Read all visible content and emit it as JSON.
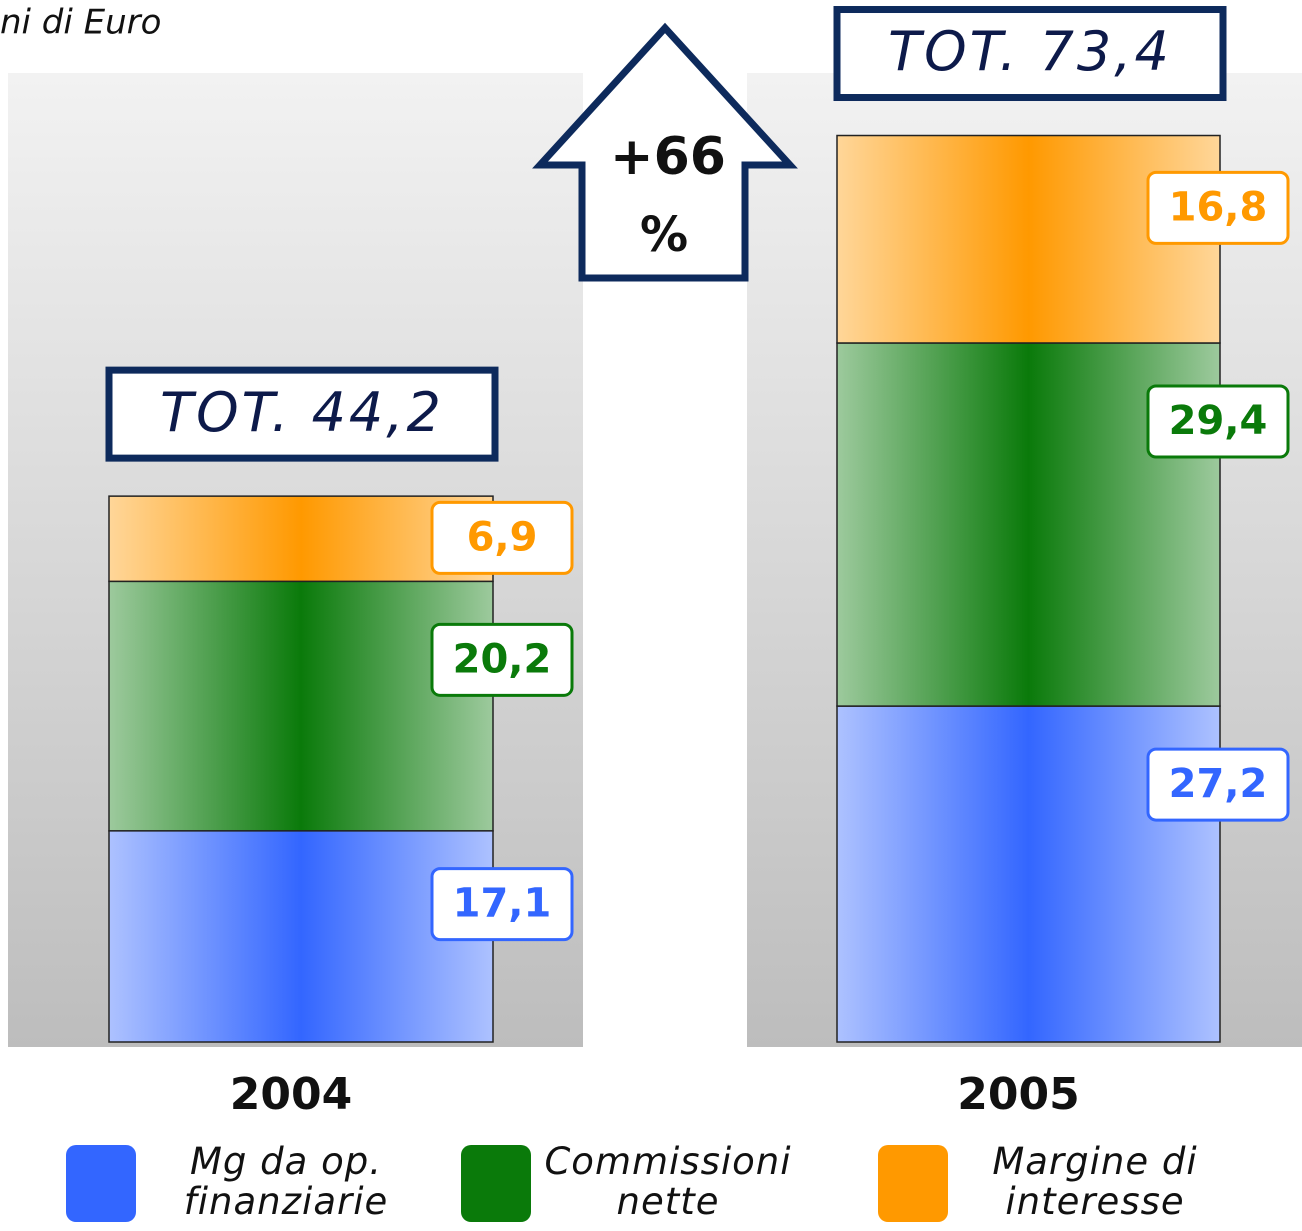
{
  "chart_data": {
    "type": "stacked-bar",
    "subtitle": "ni di Euro",
    "categories": [
      "2004",
      "2005"
    ],
    "series": [
      {
        "name": "Mg da op. finanziarie",
        "color": "#3366ff",
        "values": [
          17.1,
          27.2
        ],
        "value_labels": [
          "17,1",
          "27,2"
        ]
      },
      {
        "name": "Commissioni nette",
        "color": "#0a7a0a",
        "values": [
          20.2,
          29.4
        ],
        "value_labels": [
          "20,2",
          "29,4"
        ]
      },
      {
        "name": "Margine di interesse",
        "color": "#ff9900",
        "values": [
          6.9,
          16.8
        ],
        "value_labels": [
          "6,9",
          "16,8"
        ]
      }
    ],
    "totals": {
      "values": [
        44.2,
        73.4
      ],
      "labels": [
        "TOT. 44,2",
        "TOT. 73,4"
      ]
    },
    "annotation": {
      "lines": [
        "+66",
        "%"
      ]
    }
  }
}
